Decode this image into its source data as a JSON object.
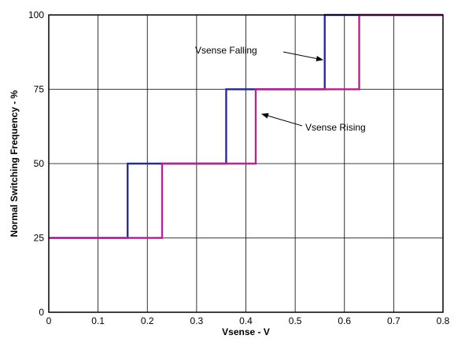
{
  "chart_data": {
    "type": "line",
    "title": "",
    "xlabel": "Vsense - V",
    "ylabel": "Normal Switching Frequency - %",
    "xlim": [
      0,
      0.8
    ],
    "ylim": [
      0,
      100
    ],
    "grid": true,
    "xticks": [
      "0",
      "0.1",
      "0.2",
      "0.3",
      "0.4",
      "0.5",
      "0.6",
      "0.7",
      "0.8"
    ],
    "yticks": [
      "0",
      "25",
      "50",
      "75",
      "100"
    ],
    "series": [
      {
        "name": "Vsense Falling",
        "color": "#2b2d8c",
        "step": true,
        "x": [
          0,
          0.16,
          0.16,
          0.36,
          0.36,
          0.56,
          0.56,
          0.8
        ],
        "y": [
          25,
          25,
          50,
          50,
          75,
          75,
          100,
          100
        ]
      },
      {
        "name": "Vsense Rising",
        "color": "#b3268f",
        "step": true,
        "x": [
          0,
          0.23,
          0.23,
          0.42,
          0.42,
          0.63,
          0.63,
          0.8
        ],
        "y": [
          25,
          25,
          50,
          50,
          75,
          75,
          100,
          100
        ]
      }
    ],
    "annotations": [
      {
        "text": "Vsense Falling",
        "points_to": [
          0.56,
          92
        ]
      },
      {
        "text": "Vsense Rising",
        "points_to": [
          0.43,
          67
        ]
      }
    ]
  }
}
